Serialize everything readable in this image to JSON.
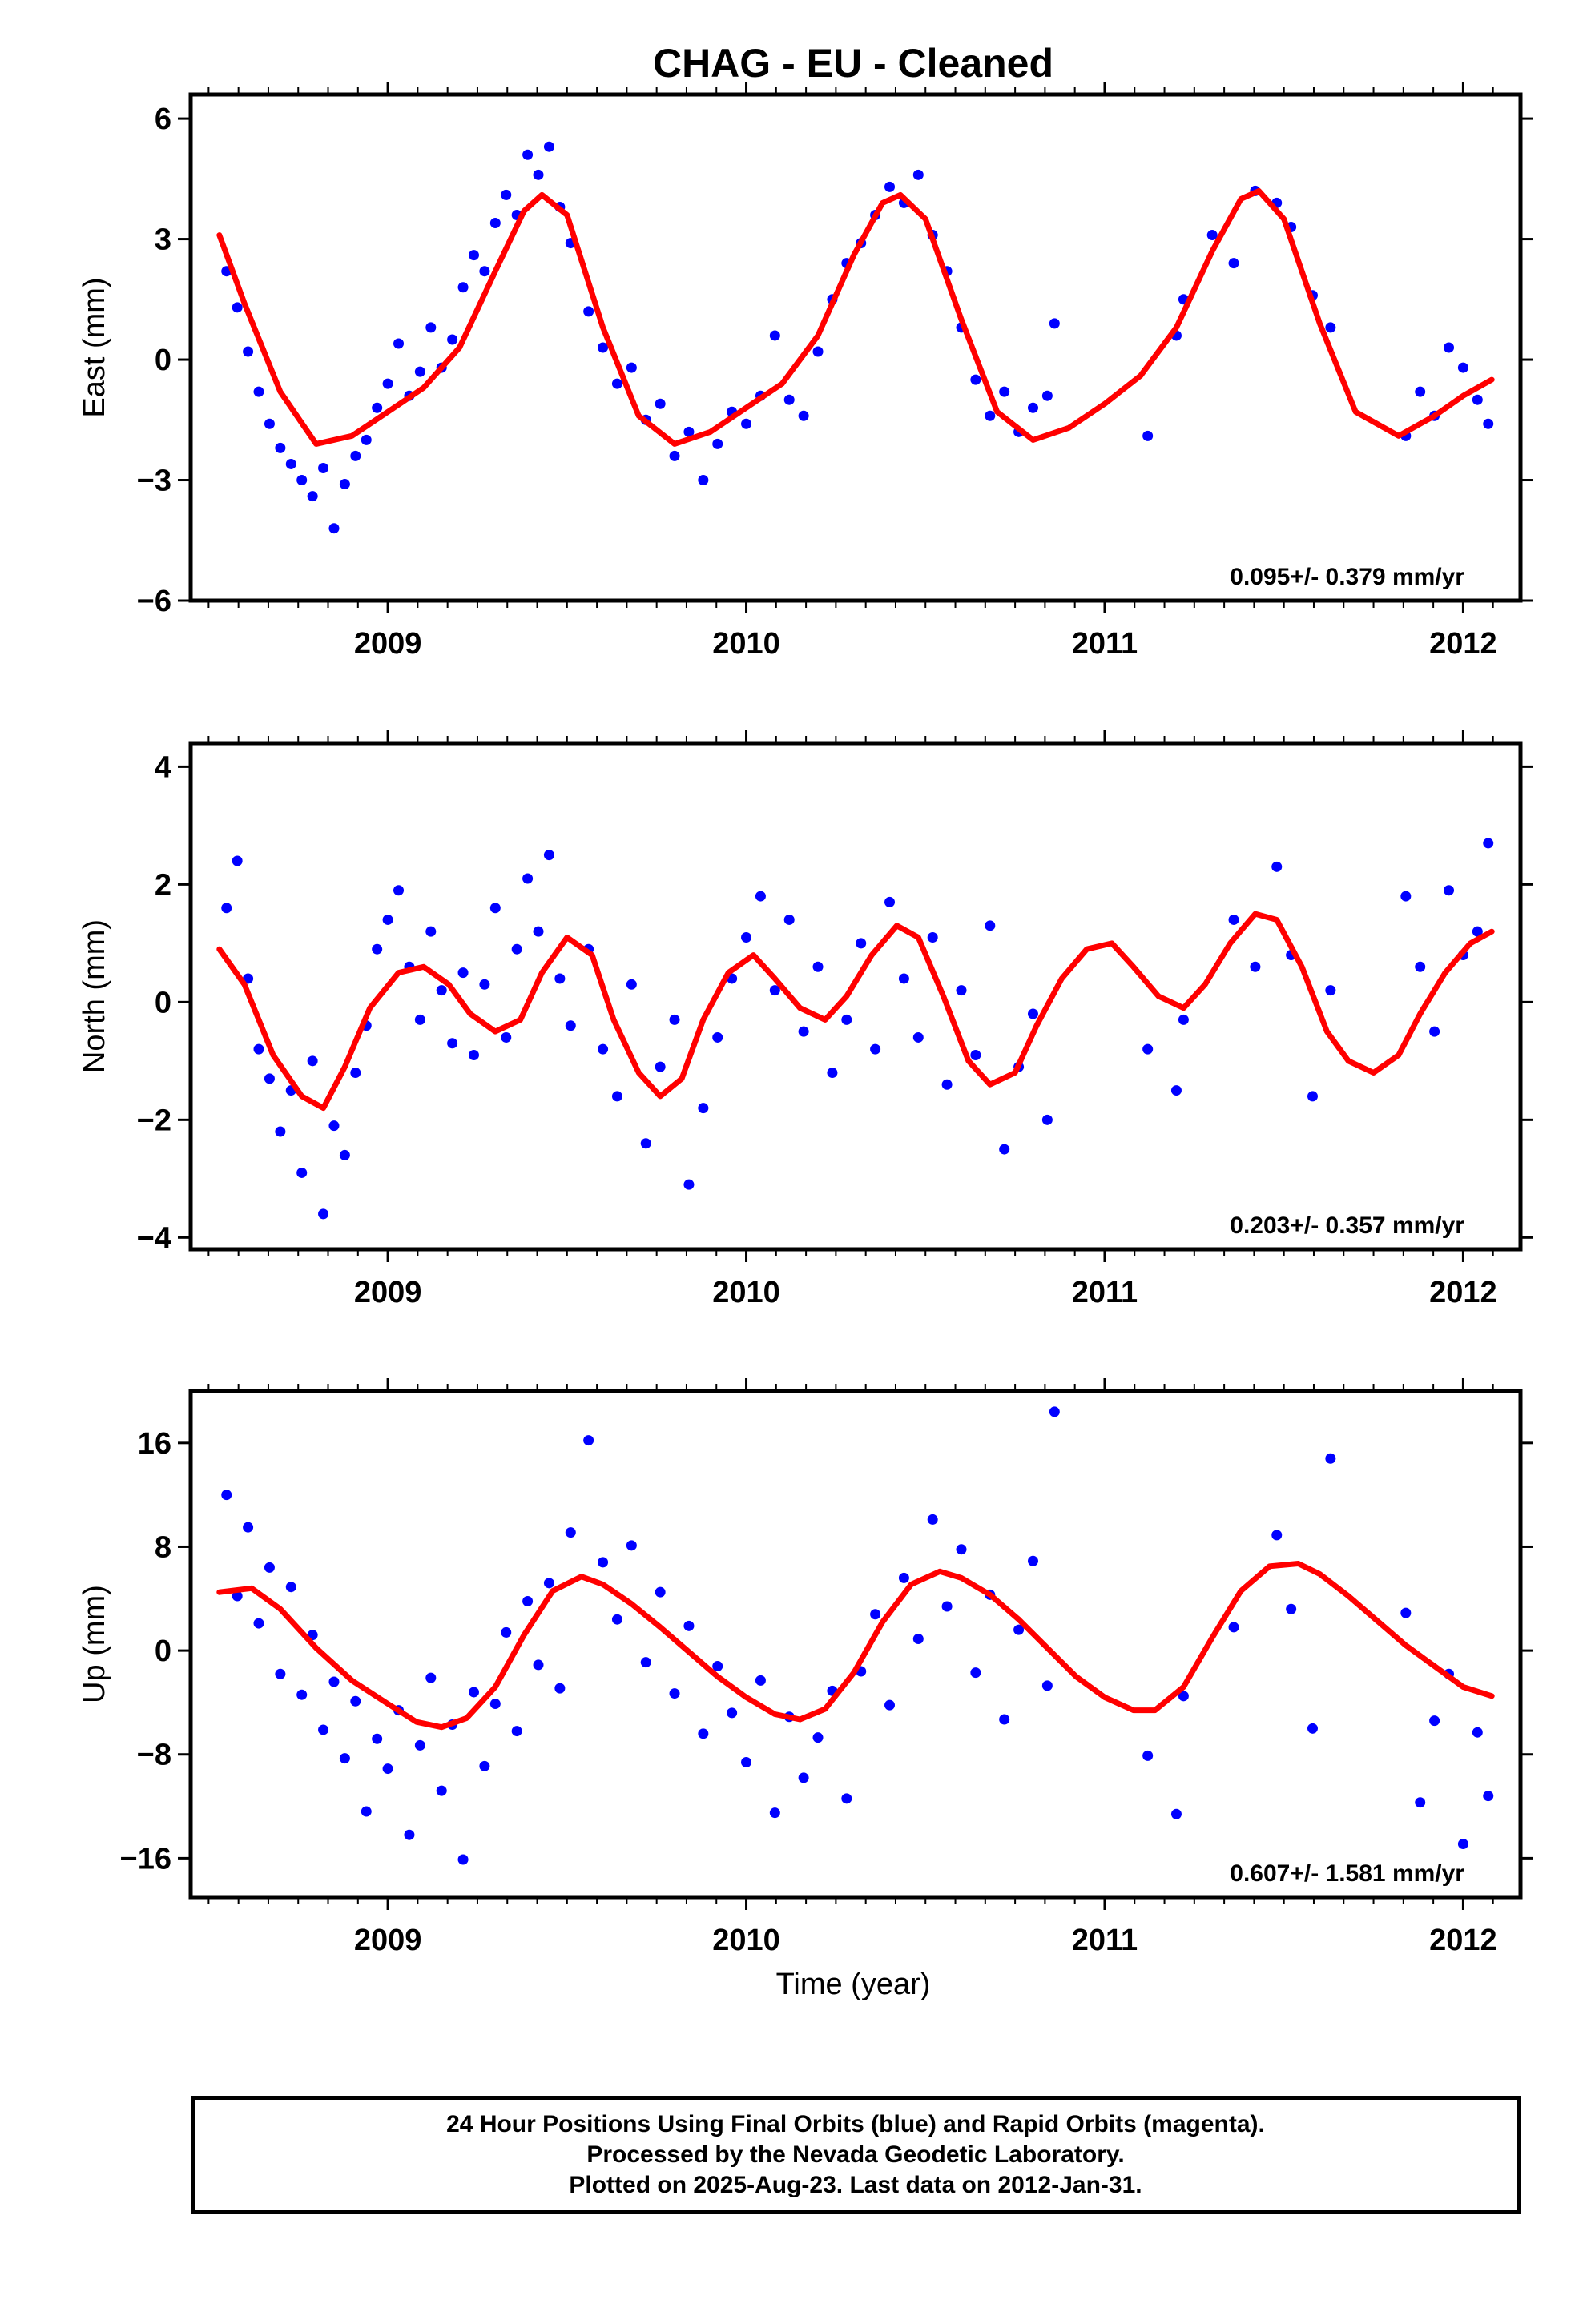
{
  "title": "CHAG  - EU - Cleaned",
  "xlabel": "Time (year)",
  "footer": {
    "line1": "24 Hour Positions Using Final Orbits (blue) and Rapid Orbits (magenta).",
    "line2": "Processed by the Nevada Geodetic Laboratory.",
    "line3": "Plotted on 2025-Aug-23. Last data on 2012-Jan-31."
  },
  "colors": {
    "points": "#0000ff",
    "fit": "#ff0000",
    "frame": "#000000"
  },
  "chart_data": [
    {
      "type": "scatter",
      "ylabel": "East (mm)",
      "rate": "0.095+/- 0.379 mm/yr",
      "xlim": [
        2008.45,
        2012.16
      ],
      "ylim": [
        -6,
        6.6
      ],
      "yticks": [
        -6,
        -3,
        0,
        3,
        6
      ],
      "xticks": [
        2009,
        2010,
        2011,
        2012
      ],
      "grid": false,
      "series": [
        {
          "role": "points",
          "x": [
            2008.55,
            2008.58,
            2008.61,
            2008.64,
            2008.67,
            2008.7,
            2008.73,
            2008.76,
            2008.79,
            2008.82,
            2008.85,
            2008.88,
            2008.91,
            2008.94,
            2008.97,
            2009.0,
            2009.03,
            2009.06,
            2009.09,
            2009.12,
            2009.15,
            2009.18,
            2009.21,
            2009.24,
            2009.27,
            2009.3,
            2009.33,
            2009.36,
            2009.39,
            2009.42,
            2009.45,
            2009.48,
            2009.51,
            2009.56,
            2009.6,
            2009.64,
            2009.68,
            2009.72,
            2009.76,
            2009.8,
            2009.84,
            2009.88,
            2009.92,
            2009.96,
            2010.0,
            2010.04,
            2010.08,
            2010.12,
            2010.16,
            2010.2,
            2010.24,
            2010.28,
            2010.32,
            2010.36,
            2010.4,
            2010.44,
            2010.48,
            2010.52,
            2010.56,
            2010.6,
            2010.64,
            2010.68,
            2010.72,
            2010.76,
            2010.8,
            2010.84,
            2010.86,
            2011.12,
            2011.2,
            2011.22,
            2011.3,
            2011.36,
            2011.42,
            2011.48,
            2011.52,
            2011.58,
            2011.63,
            2011.84,
            2011.88,
            2011.92,
            2011.96,
            2012.0,
            2012.04,
            2012.07
          ],
          "y": [
            2.2,
            1.3,
            0.2,
            -0.8,
            -1.6,
            -2.2,
            -2.6,
            -3.0,
            -3.4,
            -2.7,
            -4.2,
            -3.1,
            -2.4,
            -2.0,
            -1.2,
            -0.6,
            0.4,
            -0.9,
            -0.3,
            0.8,
            -0.2,
            0.5,
            1.8,
            2.6,
            2.2,
            3.4,
            4.1,
            3.6,
            5.1,
            4.6,
            5.3,
            3.8,
            2.9,
            1.2,
            0.3,
            -0.6,
            -0.2,
            -1.5,
            -1.1,
            -2.4,
            -1.8,
            -3.0,
            -2.1,
            -1.3,
            -1.6,
            -0.9,
            0.6,
            -1.0,
            -1.4,
            0.2,
            1.5,
            2.4,
            2.9,
            3.6,
            4.3,
            3.9,
            4.6,
            3.1,
            2.2,
            0.8,
            -0.5,
            -1.4,
            -0.8,
            -1.8,
            -1.2,
            -0.9,
            0.9,
            -1.9,
            0.6,
            1.5,
            3.1,
            2.4,
            4.2,
            3.9,
            3.3,
            1.6,
            0.8,
            -1.9,
            -0.8,
            -1.4,
            0.3,
            -0.2,
            -1.0,
            -1.6
          ]
        },
        {
          "role": "fit",
          "x": [
            2008.53,
            2008.6,
            2008.7,
            2008.8,
            2008.9,
            2009.0,
            2009.1,
            2009.2,
            2009.3,
            2009.38,
            2009.43,
            2009.5,
            2009.6,
            2009.7,
            2009.8,
            2009.9,
            2010.0,
            2010.1,
            2010.2,
            2010.3,
            2010.38,
            2010.43,
            2010.5,
            2010.6,
            2010.7,
            2010.8,
            2010.9,
            2011.0,
            2011.1,
            2011.2,
            2011.3,
            2011.38,
            2011.43,
            2011.5,
            2011.6,
            2011.7,
            2011.82,
            2011.92,
            2012.0,
            2012.08
          ],
          "y": [
            3.1,
            1.4,
            -0.8,
            -2.1,
            -1.9,
            -1.3,
            -0.7,
            0.3,
            2.2,
            3.7,
            4.1,
            3.6,
            0.8,
            -1.4,
            -2.1,
            -1.8,
            -1.2,
            -0.6,
            0.6,
            2.6,
            3.9,
            4.1,
            3.5,
            1.0,
            -1.3,
            -2.0,
            -1.7,
            -1.1,
            -0.4,
            0.8,
            2.7,
            4.0,
            4.2,
            3.5,
            0.9,
            -1.3,
            -1.9,
            -1.4,
            -0.9,
            -0.5
          ]
        }
      ]
    },
    {
      "type": "scatter",
      "ylabel": "North (mm)",
      "rate": "0.203+/- 0.357 mm/yr",
      "xlim": [
        2008.45,
        2012.16
      ],
      "ylim": [
        -4.2,
        4.4
      ],
      "yticks": [
        -4,
        -2,
        0,
        2,
        4
      ],
      "xticks": [
        2009,
        2010,
        2011,
        2012
      ],
      "grid": false,
      "series": [
        {
          "role": "points",
          "x": [
            2008.55,
            2008.58,
            2008.61,
            2008.64,
            2008.67,
            2008.7,
            2008.73,
            2008.76,
            2008.79,
            2008.82,
            2008.85,
            2008.88,
            2008.91,
            2008.94,
            2008.97,
            2009.0,
            2009.03,
            2009.06,
            2009.09,
            2009.12,
            2009.15,
            2009.18,
            2009.21,
            2009.24,
            2009.27,
            2009.3,
            2009.33,
            2009.36,
            2009.39,
            2009.42,
            2009.45,
            2009.48,
            2009.51,
            2009.56,
            2009.6,
            2009.64,
            2009.68,
            2009.72,
            2009.76,
            2009.8,
            2009.84,
            2009.88,
            2009.92,
            2009.96,
            2010.0,
            2010.04,
            2010.08,
            2010.12,
            2010.16,
            2010.2,
            2010.24,
            2010.28,
            2010.32,
            2010.36,
            2010.4,
            2010.44,
            2010.48,
            2010.52,
            2010.56,
            2010.6,
            2010.64,
            2010.68,
            2010.72,
            2010.76,
            2010.8,
            2010.84,
            2011.12,
            2011.2,
            2011.22,
            2011.36,
            2011.42,
            2011.48,
            2011.52,
            2011.58,
            2011.63,
            2011.84,
            2011.88,
            2011.92,
            2011.96,
            2012.0,
            2012.04,
            2012.07
          ],
          "y": [
            1.6,
            2.4,
            0.4,
            -0.8,
            -1.3,
            -2.2,
            -1.5,
            -2.9,
            -1.0,
            -3.6,
            -2.1,
            -2.6,
            -1.2,
            -0.4,
            0.9,
            1.4,
            1.9,
            0.6,
            -0.3,
            1.2,
            0.2,
            -0.7,
            0.5,
            -0.9,
            0.3,
            1.6,
            -0.6,
            0.9,
            2.1,
            1.2,
            2.5,
            0.4,
            -0.4,
            0.9,
            -0.8,
            -1.6,
            0.3,
            -2.4,
            -1.1,
            -0.3,
            -3.1,
            -1.8,
            -0.6,
            0.4,
            1.1,
            1.8,
            0.2,
            1.4,
            -0.5,
            0.6,
            -1.2,
            -0.3,
            1.0,
            -0.8,
            1.7,
            0.4,
            -0.6,
            1.1,
            -1.4,
            0.2,
            -0.9,
            1.3,
            -2.5,
            -1.1,
            -0.2,
            -2.0,
            -0.8,
            -1.5,
            -0.3,
            1.4,
            0.6,
            2.3,
            0.8,
            -1.6,
            0.2,
            1.8,
            0.6,
            -0.5,
            1.9,
            0.8,
            1.2,
            2.7
          ]
        },
        {
          "role": "fit",
          "x": [
            2008.53,
            2008.6,
            2008.68,
            2008.76,
            2008.82,
            2008.88,
            2008.95,
            2009.03,
            2009.1,
            2009.17,
            2009.23,
            2009.3,
            2009.37,
            2009.43,
            2009.5,
            2009.57,
            2009.63,
            2009.7,
            2009.76,
            2009.82,
            2009.88,
            2009.95,
            2010.02,
            2010.08,
            2010.15,
            2010.22,
            2010.28,
            2010.35,
            2010.42,
            2010.48,
            2010.55,
            2010.62,
            2010.68,
            2010.75,
            2010.81,
            2010.88,
            2010.95,
            2011.02,
            2011.08,
            2011.15,
            2011.22,
            2011.28,
            2011.35,
            2011.42,
            2011.48,
            2011.55,
            2011.62,
            2011.68,
            2011.75,
            2011.82,
            2011.88,
            2011.95,
            2012.02,
            2012.08
          ],
          "y": [
            0.9,
            0.3,
            -0.9,
            -1.6,
            -1.8,
            -1.1,
            -0.1,
            0.5,
            0.6,
            0.3,
            -0.2,
            -0.5,
            -0.3,
            0.5,
            1.1,
            0.8,
            -0.3,
            -1.2,
            -1.6,
            -1.3,
            -0.3,
            0.5,
            0.8,
            0.4,
            -0.1,
            -0.3,
            0.1,
            0.8,
            1.3,
            1.1,
            0.1,
            -1.0,
            -1.4,
            -1.2,
            -0.4,
            0.4,
            0.9,
            1.0,
            0.6,
            0.1,
            -0.1,
            0.3,
            1.0,
            1.5,
            1.4,
            0.6,
            -0.5,
            -1.0,
            -1.2,
            -0.9,
            -0.2,
            0.5,
            1.0,
            1.2
          ]
        }
      ]
    },
    {
      "type": "scatter",
      "ylabel": "Up (mm)",
      "rate": "0.607+/- 1.581 mm/yr",
      "xlim": [
        2008.45,
        2012.16
      ],
      "ylim": [
        -19,
        20
      ],
      "yticks": [
        -16,
        -8,
        0,
        8,
        16
      ],
      "xticks": [
        2009,
        2010,
        2011,
        2012
      ],
      "grid": false,
      "series": [
        {
          "role": "points",
          "x": [
            2008.55,
            2008.58,
            2008.61,
            2008.64,
            2008.67,
            2008.7,
            2008.73,
            2008.76,
            2008.79,
            2008.82,
            2008.85,
            2008.88,
            2008.91,
            2008.94,
            2008.97,
            2009.0,
            2009.03,
            2009.06,
            2009.09,
            2009.12,
            2009.15,
            2009.18,
            2009.21,
            2009.24,
            2009.27,
            2009.3,
            2009.33,
            2009.36,
            2009.39,
            2009.42,
            2009.45,
            2009.48,
            2009.51,
            2009.56,
            2009.6,
            2009.64,
            2009.68,
            2009.72,
            2009.76,
            2009.8,
            2009.84,
            2009.88,
            2009.92,
            2009.96,
            2010.0,
            2010.04,
            2010.08,
            2010.12,
            2010.16,
            2010.2,
            2010.24,
            2010.28,
            2010.32,
            2010.36,
            2010.4,
            2010.44,
            2010.48,
            2010.52,
            2010.56,
            2010.6,
            2010.64,
            2010.68,
            2010.72,
            2010.76,
            2010.8,
            2010.84,
            2010.86,
            2011.12,
            2011.2,
            2011.22,
            2011.36,
            2011.48,
            2011.52,
            2011.58,
            2011.63,
            2011.84,
            2011.88,
            2011.92,
            2011.96,
            2012.0,
            2012.04,
            2012.07
          ],
          "y": [
            12.0,
            4.2,
            9.5,
            2.1,
            6.4,
            -1.8,
            4.9,
            -3.4,
            1.2,
            -6.1,
            -2.4,
            -8.3,
            -3.9,
            -12.4,
            -6.8,
            -9.1,
            -4.6,
            -14.2,
            -7.3,
            -2.1,
            -10.8,
            -5.7,
            -16.1,
            -3.2,
            -8.9,
            -4.1,
            1.4,
            -6.2,
            3.8,
            -1.1,
            5.2,
            -2.9,
            9.1,
            16.2,
            6.8,
            2.4,
            8.1,
            -0.9,
            4.5,
            -3.3,
            1.9,
            -6.4,
            -1.2,
            -4.8,
            -8.6,
            -2.3,
            -12.5,
            -5.1,
            -9.8,
            -6.7,
            -3.1,
            -11.4,
            -1.6,
            2.8,
            -4.2,
            5.6,
            0.9,
            10.1,
            3.4,
            7.8,
            -1.7,
            4.3,
            -5.3,
            1.6,
            6.9,
            -2.7,
            18.4,
            -8.1,
            -12.6,
            -3.5,
            1.8,
            8.9,
            3.2,
            -6.0,
            14.8,
            2.9,
            -11.7,
            -5.4,
            -1.8,
            -14.9,
            -6.3,
            -11.2
          ]
        },
        {
          "role": "fit",
          "x": [
            2008.53,
            2008.62,
            2008.7,
            2008.8,
            2008.9,
            2009.0,
            2009.08,
            2009.15,
            2009.22,
            2009.3,
            2009.38,
            2009.46,
            2009.54,
            2009.6,
            2009.68,
            2009.76,
            2009.84,
            2009.92,
            2010.0,
            2010.08,
            2010.15,
            2010.22,
            2010.3,
            2010.38,
            2010.46,
            2010.54,
            2010.6,
            2010.68,
            2010.76,
            2010.84,
            2010.92,
            2011.0,
            2011.08,
            2011.14,
            2011.22,
            2011.3,
            2011.38,
            2011.46,
            2011.54,
            2011.6,
            2011.68,
            2011.76,
            2011.84,
            2011.92,
            2012.0,
            2012.08
          ],
          "y": [
            4.5,
            4.8,
            3.2,
            0.2,
            -2.3,
            -4.1,
            -5.5,
            -5.9,
            -5.2,
            -2.8,
            1.2,
            4.6,
            5.7,
            5.1,
            3.6,
            1.8,
            -0.1,
            -2.0,
            -3.6,
            -4.9,
            -5.3,
            -4.5,
            -1.7,
            2.2,
            5.1,
            6.1,
            5.6,
            4.3,
            2.4,
            0.2,
            -2.0,
            -3.6,
            -4.6,
            -4.6,
            -2.8,
            1.0,
            4.6,
            6.5,
            6.7,
            5.9,
            4.2,
            2.3,
            0.4,
            -1.2,
            -2.8,
            -3.5
          ]
        }
      ]
    }
  ]
}
